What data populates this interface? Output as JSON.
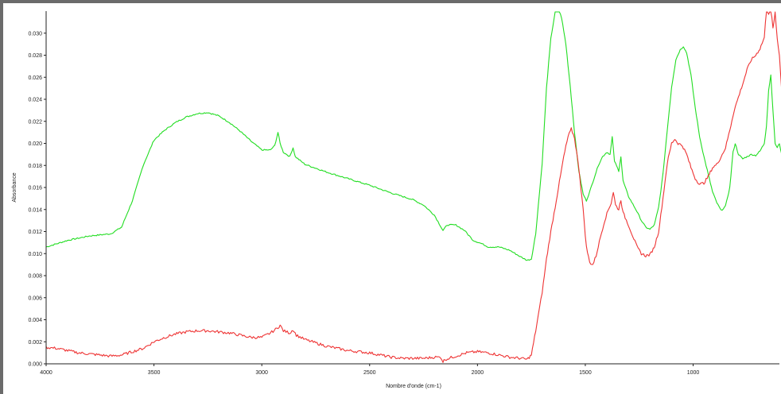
{
  "chart_data": {
    "type": "line",
    "xlabel": "Nombre d'onde (cm-1)",
    "ylabel": "Absorbance",
    "xlim": [
      4000,
      600
    ],
    "ylim": [
      0.0,
      0.032
    ],
    "x_reversed": true,
    "grid": false,
    "legend": "none",
    "x_ticks": [
      {
        "v": 4000,
        "label": "4000"
      },
      {
        "v": 3500,
        "label": "3500"
      },
      {
        "v": 3000,
        "label": "3000"
      },
      {
        "v": 2500,
        "label": "2500"
      },
      {
        "v": 2000,
        "label": "2000"
      },
      {
        "v": 1500,
        "label": "1500"
      },
      {
        "v": 1000,
        "label": "1000"
      }
    ],
    "y_ticks": [
      {
        "v": 0.0,
        "label": "0.000"
      },
      {
        "v": 0.002,
        "label": "0.002"
      },
      {
        "v": 0.004,
        "label": "0.004"
      },
      {
        "v": 0.006,
        "label": "0.006"
      },
      {
        "v": 0.008,
        "label": "0.008"
      },
      {
        "v": 0.01,
        "label": "0.010"
      },
      {
        "v": 0.012,
        "label": "0.012"
      },
      {
        "v": 0.014,
        "label": "0.014"
      },
      {
        "v": 0.016,
        "label": "0.016"
      },
      {
        "v": 0.018,
        "label": "0.018"
      },
      {
        "v": 0.02,
        "label": "0.020"
      },
      {
        "v": 0.022,
        "label": "0.022"
      },
      {
        "v": 0.024,
        "label": "0.024"
      },
      {
        "v": 0.026,
        "label": "0.026"
      },
      {
        "v": 0.028,
        "label": "0.028"
      },
      {
        "v": 0.03,
        "label": "0.030"
      }
    ],
    "series": [
      {
        "color": "#22dd22",
        "points": [
          [
            4000,
            0.0106
          ],
          [
            3900,
            0.0112
          ],
          [
            3800,
            0.0116
          ],
          [
            3750,
            0.0117
          ],
          [
            3700,
            0.0118
          ],
          [
            3650,
            0.0124
          ],
          [
            3600,
            0.0148
          ],
          [
            3550,
            0.018
          ],
          [
            3500,
            0.0203
          ],
          [
            3450,
            0.0212
          ],
          [
            3400,
            0.0219
          ],
          [
            3350,
            0.0224
          ],
          [
            3300,
            0.0227
          ],
          [
            3250,
            0.0228
          ],
          [
            3200,
            0.0225
          ],
          [
            3150,
            0.0219
          ],
          [
            3100,
            0.0211
          ],
          [
            3050,
            0.0202
          ],
          [
            3000,
            0.0194
          ],
          [
            2960,
            0.0194
          ],
          [
            2940,
            0.0198
          ],
          [
            2925,
            0.021
          ],
          [
            2915,
            0.02
          ],
          [
            2900,
            0.0192
          ],
          [
            2870,
            0.0188
          ],
          [
            2855,
            0.0196
          ],
          [
            2845,
            0.0188
          ],
          [
            2800,
            0.0181
          ],
          [
            2700,
            0.0174
          ],
          [
            2600,
            0.0168
          ],
          [
            2500,
            0.0162
          ],
          [
            2400,
            0.0155
          ],
          [
            2300,
            0.0149
          ],
          [
            2250,
            0.0144
          ],
          [
            2200,
            0.0135
          ],
          [
            2160,
            0.0121
          ],
          [
            2140,
            0.0126
          ],
          [
            2100,
            0.0126
          ],
          [
            2060,
            0.0121
          ],
          [
            2020,
            0.0112
          ],
          [
            1980,
            0.0109
          ],
          [
            1950,
            0.0106
          ],
          [
            1900,
            0.0106
          ],
          [
            1850,
            0.0103
          ],
          [
            1800,
            0.0097
          ],
          [
            1770,
            0.0094
          ],
          [
            1750,
            0.0095
          ],
          [
            1730,
            0.0118
          ],
          [
            1700,
            0.0182
          ],
          [
            1680,
            0.025
          ],
          [
            1660,
            0.0295
          ],
          [
            1640,
            0.0319
          ],
          [
            1625,
            0.0322
          ],
          [
            1610,
            0.0314
          ],
          [
            1590,
            0.029
          ],
          [
            1570,
            0.0252
          ],
          [
            1550,
            0.021
          ],
          [
            1530,
            0.0175
          ],
          [
            1510,
            0.0154
          ],
          [
            1495,
            0.0148
          ],
          [
            1480,
            0.0156
          ],
          [
            1460,
            0.0168
          ],
          [
            1440,
            0.018
          ],
          [
            1420,
            0.0188
          ],
          [
            1400,
            0.0192
          ],
          [
            1385,
            0.019
          ],
          [
            1375,
            0.0206
          ],
          [
            1365,
            0.0184
          ],
          [
            1345,
            0.0175
          ],
          [
            1335,
            0.0188
          ],
          [
            1325,
            0.0166
          ],
          [
            1300,
            0.0152
          ],
          [
            1280,
            0.0145
          ],
          [
            1260,
            0.0138
          ],
          [
            1240,
            0.013
          ],
          [
            1220,
            0.0124
          ],
          [
            1200,
            0.0122
          ],
          [
            1180,
            0.0126
          ],
          [
            1160,
            0.0142
          ],
          [
            1140,
            0.0172
          ],
          [
            1120,
            0.0212
          ],
          [
            1100,
            0.0251
          ],
          [
            1080,
            0.0276
          ],
          [
            1060,
            0.0285
          ],
          [
            1045,
            0.0288
          ],
          [
            1030,
            0.0282
          ],
          [
            1010,
            0.0262
          ],
          [
            990,
            0.0232
          ],
          [
            970,
            0.0206
          ],
          [
            950,
            0.0188
          ],
          [
            930,
            0.0172
          ],
          [
            910,
            0.0156
          ],
          [
            890,
            0.0146
          ],
          [
            870,
            0.0139
          ],
          [
            850,
            0.0143
          ],
          [
            830,
            0.016
          ],
          [
            815,
            0.0192
          ],
          [
            805,
            0.02
          ],
          [
            790,
            0.019
          ],
          [
            770,
            0.0186
          ],
          [
            750,
            0.0188
          ],
          [
            730,
            0.019
          ],
          [
            710,
            0.0189
          ],
          [
            690,
            0.0193
          ],
          [
            670,
            0.02
          ],
          [
            660,
            0.0216
          ],
          [
            650,
            0.0248
          ],
          [
            640,
            0.0262
          ],
          [
            630,
            0.023
          ],
          [
            620,
            0.02
          ],
          [
            610,
            0.0196
          ],
          [
            600,
            0.02
          ],
          [
            590,
            0.019
          ],
          [
            580,
            0.004
          ]
        ]
      },
      {
        "color": "#ee3333",
        "points": [
          [
            4000,
            0.0015
          ],
          [
            3950,
            0.0014
          ],
          [
            3900,
            0.0012
          ],
          [
            3850,
            0.001
          ],
          [
            3800,
            0.0009
          ],
          [
            3750,
            0.0008
          ],
          [
            3700,
            0.0007
          ],
          [
            3650,
            0.0008
          ],
          [
            3600,
            0.0011
          ],
          [
            3550,
            0.0014
          ],
          [
            3500,
            0.002
          ],
          [
            3450,
            0.0024
          ],
          [
            3400,
            0.0027
          ],
          [
            3350,
            0.0029
          ],
          [
            3300,
            0.003
          ],
          [
            3250,
            0.003
          ],
          [
            3200,
            0.0029
          ],
          [
            3150,
            0.0028
          ],
          [
            3100,
            0.0026
          ],
          [
            3050,
            0.0024
          ],
          [
            3000,
            0.0024
          ],
          [
            2960,
            0.0028
          ],
          [
            2930,
            0.0032
          ],
          [
            2915,
            0.0035
          ],
          [
            2900,
            0.003
          ],
          [
            2870,
            0.0028
          ],
          [
            2855,
            0.0031
          ],
          [
            2840,
            0.0026
          ],
          [
            2800,
            0.0022
          ],
          [
            2750,
            0.0019
          ],
          [
            2700,
            0.0016
          ],
          [
            2650,
            0.0014
          ],
          [
            2600,
            0.0012
          ],
          [
            2550,
            0.0011
          ],
          [
            2500,
            0.001
          ],
          [
            2450,
            0.0008
          ],
          [
            2400,
            0.0006
          ],
          [
            2350,
            0.0005
          ],
          [
            2300,
            0.0005
          ],
          [
            2250,
            0.0005
          ],
          [
            2200,
            0.0006
          ],
          [
            2170,
            0.0006
          ],
          [
            2160,
            0.0002
          ],
          [
            2150,
            0.0004
          ],
          [
            2100,
            0.0007
          ],
          [
            2050,
            0.001
          ],
          [
            2000,
            0.0011
          ],
          [
            1950,
            0.001
          ],
          [
            1900,
            0.0008
          ],
          [
            1850,
            0.0006
          ],
          [
            1800,
            0.0005
          ],
          [
            1770,
            0.0004
          ],
          [
            1750,
            0.0008
          ],
          [
            1730,
            0.003
          ],
          [
            1700,
            0.0065
          ],
          [
            1680,
            0.0095
          ],
          [
            1660,
            0.012
          ],
          [
            1640,
            0.0142
          ],
          [
            1620,
            0.0165
          ],
          [
            1600,
            0.0188
          ],
          [
            1580,
            0.0206
          ],
          [
            1565,
            0.0213
          ],
          [
            1550,
            0.0205
          ],
          [
            1530,
            0.0178
          ],
          [
            1510,
            0.014
          ],
          [
            1495,
            0.0106
          ],
          [
            1480,
            0.0092
          ],
          [
            1465,
            0.009
          ],
          [
            1450,
            0.0098
          ],
          [
            1430,
            0.0115
          ],
          [
            1410,
            0.013
          ],
          [
            1395,
            0.0139
          ],
          [
            1380,
            0.0146
          ],
          [
            1370,
            0.0156
          ],
          [
            1360,
            0.0144
          ],
          [
            1345,
            0.014
          ],
          [
            1335,
            0.0149
          ],
          [
            1325,
            0.0137
          ],
          [
            1300,
            0.0126
          ],
          [
            1280,
            0.0116
          ],
          [
            1260,
            0.0106
          ],
          [
            1240,
            0.01
          ],
          [
            1220,
            0.0098
          ],
          [
            1200,
            0.0099
          ],
          [
            1180,
            0.0106
          ],
          [
            1160,
            0.012
          ],
          [
            1140,
            0.015
          ],
          [
            1120,
            0.0182
          ],
          [
            1100,
            0.02
          ],
          [
            1085,
            0.0204
          ],
          [
            1070,
            0.02
          ],
          [
            1050,
            0.0198
          ],
          [
            1030,
            0.019
          ],
          [
            1010,
            0.0178
          ],
          [
            990,
            0.0168
          ],
          [
            970,
            0.0163
          ],
          [
            950,
            0.0164
          ],
          [
            930,
            0.017
          ],
          [
            910,
            0.0178
          ],
          [
            890,
            0.0181
          ],
          [
            870,
            0.0188
          ],
          [
            850,
            0.0196
          ],
          [
            830,
            0.0212
          ],
          [
            810,
            0.023
          ],
          [
            790,
            0.0242
          ],
          [
            770,
            0.0254
          ],
          [
            750,
            0.0267
          ],
          [
            730,
            0.0276
          ],
          [
            710,
            0.028
          ],
          [
            690,
            0.0286
          ],
          [
            670,
            0.0296
          ],
          [
            660,
            0.0322
          ],
          [
            650,
            0.0318
          ],
          [
            640,
            0.0324
          ],
          [
            630,
            0.0304
          ],
          [
            620,
            0.0318
          ],
          [
            610,
            0.0295
          ],
          [
            600,
            0.028
          ],
          [
            590,
            0.025
          ],
          [
            580,
            0.0205
          ]
        ]
      }
    ]
  }
}
